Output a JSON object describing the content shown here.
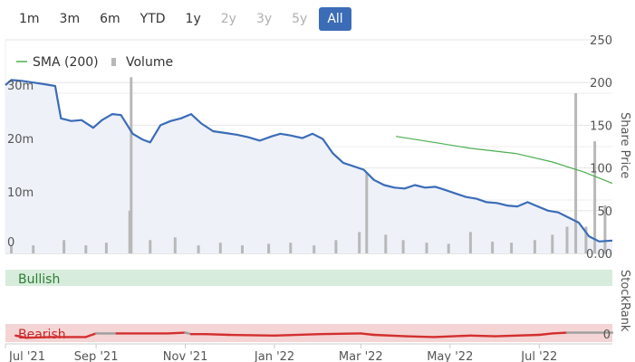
{
  "range_buttons": [
    {
      "label": "1m",
      "state": "enabled"
    },
    {
      "label": "3m",
      "state": "enabled"
    },
    {
      "label": "6m",
      "state": "enabled"
    },
    {
      "label": "YTD",
      "state": "enabled"
    },
    {
      "label": "1y",
      "state": "enabled"
    },
    {
      "label": "2y",
      "state": "disabled"
    },
    {
      "label": "3y",
      "state": "disabled"
    },
    {
      "label": "5y",
      "state": "disabled"
    },
    {
      "label": "All",
      "state": "active"
    }
  ],
  "colors": {
    "price_line": "#3b6cb7",
    "price_fill": "#eef1f8",
    "sma_line": "#4caf50",
    "volume_bar": "#b8b8b8",
    "bullish_band": "#d7ecdc",
    "bullish_text": "#2e7d32",
    "bearish_band": "#f4d4d4",
    "bearish_text": "#c62828",
    "stockrank_red": "#d32f2f",
    "stockrank_gray": "#9e9e9e",
    "active_button": "#3b6cb7"
  },
  "chart_data": {
    "type": "line",
    "legend": [
      {
        "label": "SMA (200)",
        "kind": "line"
      },
      {
        "label": "Volume",
        "kind": "bar"
      }
    ],
    "legend_position": "top-left",
    "x_ticks": [
      "Jul '21",
      "Sep '21",
      "Nov '21",
      "Jan '22",
      "Mar '22",
      "May '22",
      "Jul '22"
    ],
    "x_range": [
      "2021-07-01",
      "2022-08-20"
    ],
    "price_axis": {
      "label": "Share Price",
      "ticks": [
        "250",
        "200",
        "150",
        "100",
        "50",
        "0.00"
      ],
      "range": [
        0,
        250
      ]
    },
    "volume_axis": {
      "ticks": [
        "30m",
        "20m",
        "10m",
        "0"
      ],
      "range": [
        0,
        40000000
      ]
    },
    "share_price": {
      "name": "Share Price",
      "x": [
        "2021-07-01",
        "2021-07-05",
        "2021-07-12",
        "2021-07-20",
        "2021-07-28",
        "2021-08-04",
        "2021-08-08",
        "2021-08-15",
        "2021-08-22",
        "2021-08-30",
        "2021-09-05",
        "2021-09-12",
        "2021-09-18",
        "2021-09-26",
        "2021-10-03",
        "2021-10-08",
        "2021-10-15",
        "2021-10-22",
        "2021-10-29",
        "2021-11-05",
        "2021-11-12",
        "2021-11-20",
        "2021-11-28",
        "2021-12-06",
        "2021-12-14",
        "2021-12-22",
        "2021-12-30",
        "2022-01-05",
        "2022-01-12",
        "2022-01-20",
        "2022-01-27",
        "2022-02-03",
        "2022-02-10",
        "2022-02-17",
        "2022-02-24",
        "2022-03-03",
        "2022-03-10",
        "2022-03-17",
        "2022-03-24",
        "2022-03-31",
        "2022-04-07",
        "2022-04-14",
        "2022-04-21",
        "2022-04-28",
        "2022-05-05",
        "2022-05-12",
        "2022-05-19",
        "2022-05-26",
        "2022-06-02",
        "2022-06-09",
        "2022-06-16",
        "2022-06-23",
        "2022-06-30",
        "2022-07-07",
        "2022-07-14",
        "2022-07-21",
        "2022-07-28",
        "2022-08-04",
        "2022-08-11",
        "2022-08-20"
      ],
      "y": [
        197,
        203,
        202,
        200,
        198,
        196,
        158,
        155,
        156,
        147,
        156,
        163,
        162,
        140,
        133,
        130,
        150,
        155,
        158,
        163,
        152,
        143,
        141,
        139,
        136,
        132,
        137,
        140,
        138,
        135,
        140,
        134,
        117,
        106,
        102,
        98,
        86,
        80,
        77,
        76,
        80,
        77,
        78,
        74,
        70,
        66,
        64,
        60,
        59,
        56,
        55,
        60,
        55,
        50,
        48,
        42,
        36,
        20,
        14,
        15
      ]
    },
    "sma_200": {
      "name": "SMA (200)",
      "x": [
        "2022-03-25",
        "2022-04-20",
        "2022-05-15",
        "2022-06-15",
        "2022-07-10",
        "2022-08-01",
        "2022-08-20"
      ],
      "y": [
        137,
        130,
        123,
        117,
        107,
        95,
        82
      ]
    },
    "volume": {
      "name": "Volume",
      "x": [
        "2021-07-05",
        "2021-07-20",
        "2021-08-10",
        "2021-08-25",
        "2021-09-08",
        "2021-09-24",
        "2021-09-25",
        "2021-10-08",
        "2021-10-25",
        "2021-11-10",
        "2021-11-25",
        "2021-12-10",
        "2021-12-28",
        "2022-01-12",
        "2022-01-28",
        "2022-02-12",
        "2022-02-28",
        "2022-03-05",
        "2022-03-18",
        "2022-03-30",
        "2022-04-15",
        "2022-04-30",
        "2022-05-15",
        "2022-05-30",
        "2022-06-12",
        "2022-06-28",
        "2022-07-10",
        "2022-07-20",
        "2022-07-26",
        "2022-08-02",
        "2022-08-08",
        "2022-08-15"
      ],
      "y": [
        1500000,
        1500000,
        2500000,
        1500000,
        2000000,
        8000000,
        33000000,
        2500000,
        3000000,
        1500000,
        2000000,
        1500000,
        1800000,
        2000000,
        1500000,
        2500000,
        4000000,
        15000000,
        3500000,
        2500000,
        2000000,
        1800000,
        4000000,
        2200000,
        2000000,
        2500000,
        3500000,
        5000000,
        30000000,
        5000000,
        21000000,
        9000000
      ]
    },
    "stockrank": {
      "label": "StockRank",
      "axis_label": "0",
      "bands": [
        {
          "label": "Bullish",
          "position": "top"
        },
        {
          "label": "Bearish",
          "position": "bottom"
        }
      ],
      "x": [
        "2021-07-08",
        "2021-07-15",
        "2021-08-01",
        "2021-08-25",
        "2021-09-01",
        "2021-09-15",
        "2021-10-20",
        "2021-11-01",
        "2021-11-05",
        "2021-11-15",
        "2021-12-01",
        "2022-01-01",
        "2022-02-01",
        "2022-03-01",
        "2022-03-10",
        "2022-04-01",
        "2022-04-20",
        "2022-05-15",
        "2022-06-01",
        "2022-07-01",
        "2022-07-10",
        "2022-07-20",
        "2022-08-20"
      ],
      "y": [
        9,
        6,
        7,
        7,
        12,
        12,
        12,
        13,
        11,
        11,
        10,
        9,
        11,
        12,
        10,
        8,
        7,
        9,
        8,
        10,
        12,
        13,
        13
      ],
      "gray_segments": [
        [
          "2021-08-28",
          "2021-09-15"
        ],
        [
          "2021-10-25",
          "2021-11-08"
        ],
        [
          "2022-07-15",
          "2022-08-20"
        ]
      ]
    }
  }
}
